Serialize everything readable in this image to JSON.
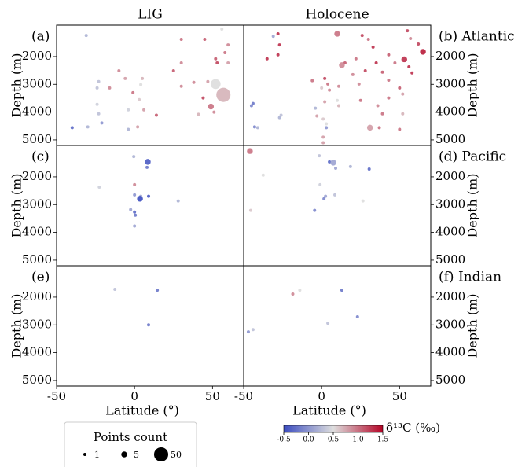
{
  "chart_data": [
    {
      "type": "scatter",
      "title": "(a)",
      "column_title": "LIG",
      "ylabel": "Depth (m)",
      "xlim": [
        -50,
        70
      ],
      "ylim": [
        5200,
        870
      ],
      "yticks": [
        2000,
        3000,
        4000,
        5000
      ],
      "x": [
        -31,
        56,
        60,
        30,
        45,
        58,
        52,
        53,
        30,
        60,
        -10,
        25,
        5,
        -6,
        -23,
        38,
        47,
        52,
        57,
        44,
        30,
        -24,
        -16,
        4,
        -1,
        3,
        -4,
        6,
        14,
        41,
        49,
        51,
        -23,
        -21,
        -30,
        -40,
        2,
        -4,
        -24
      ],
      "values": [
        1240,
        1010,
        1580,
        1380,
        1380,
        1860,
        2080,
        2230,
        2230,
        2230,
        2510,
        2510,
        2790,
        2790,
        2900,
        2930,
        2900,
        2990,
        3380,
        3490,
        3070,
        3130,
        3130,
        3010,
        3300,
        3550,
        3920,
        3920,
        4110,
        4080,
        3800,
        4000,
        4060,
        4390,
        4530,
        4560,
        4530,
        4620,
        3720
      ],
      "d13c": [
        0.2,
        0.5,
        0.9,
        1.0,
        1.1,
        1.0,
        1.1,
        1.2,
        0.9,
        0.8,
        0.9,
        1.1,
        0.7,
        0.8,
        0.3,
        0.9,
        0.8,
        0.5,
        0.7,
        1.2,
        0.9,
        0.3,
        0.9,
        0.5,
        1.0,
        0.6,
        0.4,
        0.8,
        1.1,
        0.7,
        1.0,
        0.9,
        0.3,
        0.0,
        0.2,
        -0.3,
        0.8,
        0.2,
        0.4
      ],
      "counts": [
        1,
        1,
        1,
        1,
        1,
        1,
        1,
        1,
        1,
        1,
        1,
        1,
        1,
        1,
        1,
        1,
        1,
        20,
        50,
        1,
        1,
        1,
        1,
        1,
        1,
        1,
        1,
        1,
        1,
        1,
        5,
        1,
        1,
        1,
        1,
        1,
        1,
        1,
        1
      ]
    },
    {
      "type": "scatter",
      "title": "(b) Atlantic",
      "column_title": "Holocene",
      "ylabel": "Depth (m)",
      "xlim": [
        -50,
        70
      ],
      "ylim": [
        5200,
        870
      ],
      "yticks": [
        2000,
        3000,
        4000,
        5000
      ],
      "x": [
        -31,
        -28,
        -27,
        -28,
        -35,
        10,
        26,
        30,
        33,
        55,
        57,
        62,
        65,
        53,
        56,
        47,
        43,
        35,
        22,
        15,
        13,
        28,
        20,
        39,
        58,
        2,
        4,
        5,
        -6,
        0,
        11,
        24,
        43,
        50,
        52,
        43,
        36,
        25,
        11,
        2,
        -4,
        -3,
        1,
        3,
        3,
        1,
        1,
        31,
        37,
        52,
        39,
        50,
        -26,
        -27,
        -44,
        -45,
        -43,
        -41,
        10
      ],
      "values": [
        1270,
        1180,
        1580,
        1940,
        2080,
        1180,
        1240,
        1380,
        1660,
        1070,
        1350,
        1550,
        1830,
        2100,
        2370,
        2230,
        1940,
        2230,
        2080,
        2230,
        2310,
        2510,
        2650,
        2560,
        2590,
        2790,
        2990,
        3210,
        2870,
        3130,
        3070,
        2990,
        2850,
        3130,
        3350,
        3490,
        3770,
        3580,
        3770,
        3630,
        3860,
        4140,
        4250,
        4420,
        4560,
        4900,
        5100,
        4560,
        4560,
        4060,
        4060,
        4620,
        4110,
        4200,
        3690,
        3770,
        4530,
        4560,
        3580
      ],
      "d13c": [
        0.1,
        1.3,
        1.3,
        1.3,
        1.3,
        1.0,
        1.2,
        1.0,
        1.3,
        1.2,
        0.9,
        1.2,
        1.4,
        1.3,
        1.3,
        1.0,
        1.1,
        1.3,
        1.0,
        1.1,
        0.9,
        1.2,
        0.9,
        1.1,
        1.3,
        1.2,
        1.0,
        0.9,
        1.0,
        0.6,
        0.9,
        0.9,
        1.0,
        1.1,
        0.8,
        1.0,
        0.9,
        1.0,
        0.7,
        0.8,
        0.2,
        0.8,
        0.6,
        0.5,
        0.0,
        0.8,
        0.8,
        0.8,
        1.0,
        0.7,
        1.0,
        1.0,
        0.3,
        0.2,
        -0.2,
        -0.1,
        -0.1,
        0.2,
        0.5
      ],
      "counts": [
        1,
        1,
        1,
        1,
        1,
        5,
        1,
        1,
        1,
        1,
        1,
        1,
        5,
        5,
        1,
        1,
        1,
        1,
        1,
        1,
        5,
        1,
        1,
        1,
        1,
        1,
        1,
        1,
        1,
        1,
        1,
        1,
        1,
        1,
        1,
        1,
        1,
        1,
        1,
        1,
        1,
        1,
        1,
        1,
        1,
        1,
        1,
        5,
        1,
        1,
        1,
        1,
        1,
        1,
        1,
        1,
        1,
        1,
        1
      ]
    },
    {
      "type": "scatter",
      "title": "(c)",
      "ylabel": "Depth (m)",
      "xlim": [
        -50,
        70
      ],
      "ylim": [
        5200,
        870
      ],
      "yticks": [
        2000,
        3000,
        4000,
        5000
      ],
      "x": [
        -0.5,
        8.5,
        8,
        -22.6,
        0,
        0,
        4,
        3.5,
        9,
        28,
        -2.5,
        0,
        0.5,
        0
      ],
      "values": [
        1270,
        1460,
        1660,
        2370,
        2280,
        2650,
        2700,
        2790,
        2700,
        2870,
        3180,
        3270,
        3380,
        3770
      ],
      "d13c": [
        0.2,
        -0.4,
        -0.2,
        0.4,
        0.9,
        0.0,
        0.1,
        -0.5,
        -0.4,
        0.2,
        0.1,
        -0.3,
        -0.2,
        0.1
      ],
      "counts": [
        1,
        5,
        1,
        1,
        1,
        1,
        1,
        5,
        1,
        1,
        1,
        1,
        1,
        1
      ]
    },
    {
      "type": "scatter",
      "title": "(d) Pacific",
      "ylabel": "Depth (m)",
      "xlim": [
        -50,
        70
      ],
      "ylim": [
        5200,
        870
      ],
      "yticks": [
        2000,
        3000,
        4000,
        5000
      ],
      "x": [
        -46,
        -1.5,
        5,
        7.5,
        9,
        18.5,
        30.5,
        -37.5,
        -1,
        2.5,
        1.5,
        8.5,
        26.5,
        -45.5,
        -4.5
      ],
      "values": [
        1070,
        1240,
        1460,
        1490,
        1690,
        1630,
        1720,
        1940,
        2280,
        2700,
        2790,
        2650,
        2870,
        3210,
        3210
      ],
      "d13c": [
        1.0,
        0.3,
        -0.3,
        0.1,
        0.1,
        0.2,
        -0.3,
        0.5,
        0.4,
        0.1,
        -0.1,
        0.3,
        0.5,
        0.6,
        -0.1
      ],
      "counts": [
        5,
        1,
        1,
        5,
        1,
        1,
        1,
        1,
        1,
        1,
        1,
        1,
        1,
        1,
        1
      ]
    },
    {
      "type": "scatter",
      "title": "(e)",
      "ylabel": "Depth (m)",
      "xlabel": "Latitude (°)",
      "xlim": [
        -50,
        70
      ],
      "ylim": [
        5200,
        870
      ],
      "yticks": [
        2000,
        3000,
        4000,
        5000
      ],
      "xticks": [
        -50,
        0,
        50
      ],
      "x": [
        -12.6,
        14.6,
        9
      ],
      "values": [
        1720,
        1750,
        3000
      ],
      "d13c": [
        0.3,
        -0.2,
        -0.2
      ],
      "counts": [
        1,
        1,
        1
      ]
    },
    {
      "type": "scatter",
      "title": "(f) Indian",
      "ylabel": "Depth (m)",
      "xlabel": "Latitude (°)",
      "xlim": [
        -50,
        70
      ],
      "ylim": [
        5200,
        870
      ],
      "yticks": [
        2000,
        3000,
        4000,
        5000
      ],
      "xticks": [
        -50,
        0,
        50
      ],
      "x": [
        -18.5,
        -14,
        13,
        4,
        23,
        -44,
        -47
      ],
      "values": [
        1890,
        1750,
        1750,
        2940,
        2710,
        3170,
        3250
      ],
      "d13c": [
        0.9,
        0.5,
        -0.2,
        0.3,
        -0.1,
        0.3,
        0.0
      ],
      "counts": [
        1,
        1,
        1,
        1,
        1,
        1,
        1
      ]
    }
  ],
  "colorbar": {
    "label": "δ¹³C (‰)",
    "lim": [
      -0.5,
      1.5
    ],
    "colors": [
      "#3b4cc0",
      "#dddddd",
      "#b40426"
    ],
    "ticks": [
      -0.5,
      {
        "value": 0,
        "label": "0.0"
      },
      0.5,
      {
        "value": 1,
        "label": "1.0"
      },
      1.5
    ]
  },
  "size_legend": {
    "title": "Points count",
    "counts": [
      1,
      5,
      50
    ]
  }
}
